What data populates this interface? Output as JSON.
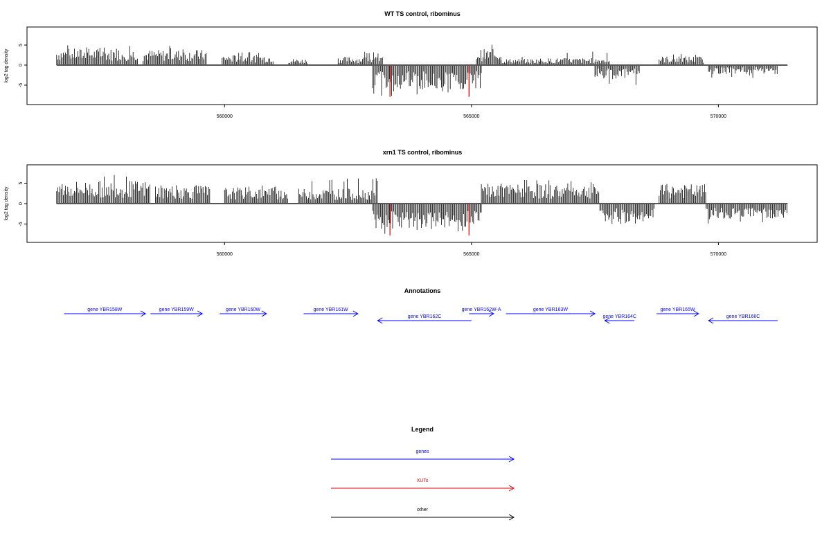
{
  "chart_data": [
    {
      "type": "bar",
      "title": "WT TS control, ribominus",
      "ylabel": "log2 tag density",
      "xlabel": "",
      "ylim": [
        -8,
        8
      ],
      "yticks": [
        -5,
        0,
        5
      ],
      "xlim": [
        556000,
        572000
      ],
      "xticks": [
        560000,
        565000,
        570000
      ],
      "grid": false,
      "colors": {
        "bars": "#000000",
        "highlight": "#cc0000",
        "baseline": "#555555"
      },
      "series": [
        {
          "strand": "plus",
          "segments": [
            {
              "start": 556600,
              "end": 558250,
              "mean": 2.6,
              "max": 5
            },
            {
              "start": 558350,
              "end": 559650,
              "mean": 2.4,
              "max": 4.8
            },
            {
              "start": 559950,
              "end": 561000,
              "mean": 1.6,
              "max": 3.5
            },
            {
              "start": 561300,
              "end": 561700,
              "mean": 1.0,
              "max": 2.5
            },
            {
              "start": 562300,
              "end": 563200,
              "mean": 1.3,
              "max": 3.5
            },
            {
              "start": 565100,
              "end": 565600,
              "mean": 2.5,
              "max": 5.3
            },
            {
              "start": 565600,
              "end": 566400,
              "mean": 1.0,
              "max": 2.5
            },
            {
              "start": 566400,
              "end": 567800,
              "mean": 1.1,
              "max": 3.5
            },
            {
              "start": 568800,
              "end": 569700,
              "mean": 1.4,
              "max": 3.0
            }
          ]
        },
        {
          "strand": "minus",
          "segments": [
            {
              "start": 563000,
              "end": 565200,
              "mean": -3.8,
              "max": -7.8
            },
            {
              "start": 567500,
              "end": 568400,
              "mean": -2.2,
              "max": -5
            },
            {
              "start": 569800,
              "end": 571200,
              "mean": -1.4,
              "max": -3.2
            }
          ]
        },
        {
          "strand": "red",
          "positions": [
            563350,
            564950
          ],
          "values": [
            -7.9,
            -7.9
          ]
        }
      ]
    },
    {
      "type": "bar",
      "title": "xrn1 TS control, ribominus",
      "ylabel": "log2 tag density",
      "xlabel": "",
      "ylim": [
        -8,
        8
      ],
      "yticks": [
        -5,
        0,
        5
      ],
      "xlim": [
        556000,
        572000
      ],
      "xticks": [
        560000,
        565000,
        570000
      ],
      "grid": false,
      "colors": {
        "bars": "#000000",
        "highlight": "#cc0000",
        "baseline": "#555555"
      },
      "series": [
        {
          "strand": "plus",
          "segments": [
            {
              "start": 556600,
              "end": 558500,
              "mean": 3.5,
              "max": 7
            },
            {
              "start": 558600,
              "end": 559700,
              "mean": 2.8,
              "max": 5
            },
            {
              "start": 560000,
              "end": 561300,
              "mean": 2.5,
              "max": 4.8
            },
            {
              "start": 561500,
              "end": 563100,
              "mean": 2.3,
              "max": 6.5
            },
            {
              "start": 565200,
              "end": 567600,
              "mean": 3.0,
              "max": 5.8
            },
            {
              "start": 568800,
              "end": 569750,
              "mean": 3.0,
              "max": 6.2
            }
          ]
        },
        {
          "strand": "minus",
          "segments": [
            {
              "start": 563000,
              "end": 565200,
              "mean": -3.8,
              "max": -7.5
            },
            {
              "start": 567600,
              "end": 568700,
              "mean": -2.8,
              "max": -5.5
            },
            {
              "start": 569750,
              "end": 571400,
              "mean": -2.5,
              "max": -5
            }
          ]
        },
        {
          "strand": "red",
          "positions": [
            563350,
            564950
          ],
          "values": [
            -7.8,
            -7.8
          ]
        }
      ]
    }
  ],
  "annotations": {
    "title": "Annotations",
    "genes": [
      {
        "name": "gene YBR158W",
        "start": 556750,
        "end": 558400,
        "strand": "+",
        "row": 0
      },
      {
        "name": "gene YBR159W",
        "start": 558500,
        "end": 559550,
        "strand": "+",
        "row": 0
      },
      {
        "name": "gene YBR160W",
        "start": 559900,
        "end": 560850,
        "strand": "+",
        "row": 0
      },
      {
        "name": "gene YBR161W",
        "start": 561600,
        "end": 562700,
        "strand": "+",
        "row": 0
      },
      {
        "name": "gene YBR162C",
        "start": 563100,
        "end": 565000,
        "strand": "-",
        "row": 1
      },
      {
        "name": "gene YBR162W-A",
        "start": 564950,
        "end": 565450,
        "strand": "+",
        "row": 0
      },
      {
        "name": "gene YBR163W",
        "start": 565700,
        "end": 567500,
        "strand": "+",
        "row": 0
      },
      {
        "name": "gene YBR164C",
        "start": 567700,
        "end": 568300,
        "strand": "-",
        "row": 1
      },
      {
        "name": "gene YBR165W",
        "start": 568750,
        "end": 569600,
        "strand": "+",
        "row": 0
      },
      {
        "name": "gene YBR166C",
        "start": 569800,
        "end": 571200,
        "strand": "-",
        "row": 1
      }
    ]
  },
  "legend": {
    "title": "Legend",
    "items": [
      {
        "label": "genes",
        "color": "#0000ff"
      },
      {
        "label": "XUTs",
        "color": "#dd0000"
      },
      {
        "label": "other",
        "color": "#000000"
      }
    ]
  }
}
